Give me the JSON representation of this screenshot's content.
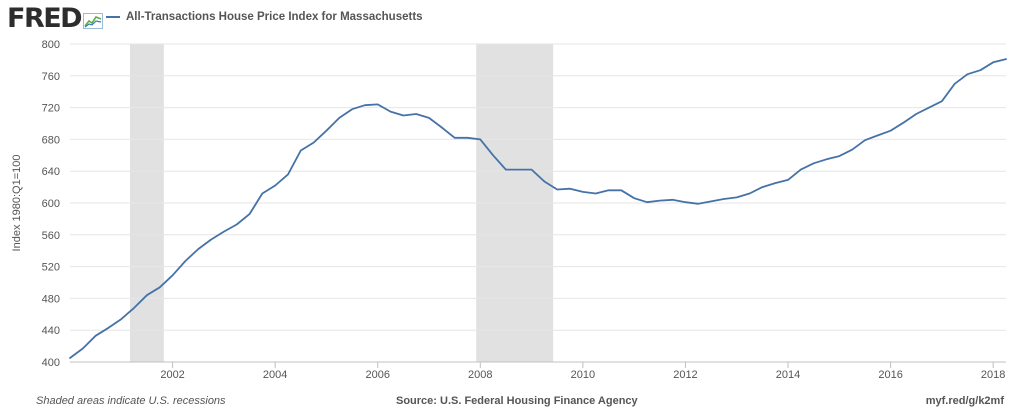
{
  "header": {
    "logo_text": "FRED",
    "logo_icon": "line-chart-icon",
    "series_title": "All-Transactions House Price Index for Massachusetts"
  },
  "footer": {
    "recession_note": "Shaded areas indicate U.S. recessions",
    "source": "Source: U.S. Federal Housing Finance Agency",
    "short_url": "myf.red/g/k2mf"
  },
  "colors": {
    "series": "#4572a7",
    "recession": "#e1e1e1",
    "grid": "#e6e6e6",
    "text": "#555555"
  },
  "chart_data": {
    "type": "line",
    "ylabel": "Index 1980:Q1=100",
    "xlabel": "",
    "ylim": [
      400,
      800
    ],
    "y_ticks": [
      400,
      440,
      480,
      520,
      560,
      600,
      640,
      680,
      720,
      760,
      800
    ],
    "xlim": [
      2000.0,
      2018.25
    ],
    "x_ticks": [
      2002,
      2004,
      2006,
      2008,
      2010,
      2012,
      2014,
      2016,
      2018
    ],
    "grid": "horizontal",
    "recessions": [
      [
        2001.17,
        2001.83
      ],
      [
        2007.92,
        2009.42
      ]
    ],
    "series": [
      {
        "name": "All-Transactions House Price Index for Massachusetts",
        "x": [
          2000.0,
          2000.25,
          2000.5,
          2000.75,
          2001.0,
          2001.25,
          2001.5,
          2001.75,
          2002.0,
          2002.25,
          2002.5,
          2002.75,
          2003.0,
          2003.25,
          2003.5,
          2003.75,
          2004.0,
          2004.25,
          2004.5,
          2004.75,
          2005.0,
          2005.25,
          2005.5,
          2005.75,
          2006.0,
          2006.25,
          2006.5,
          2006.75,
          2007.0,
          2007.25,
          2007.5,
          2007.75,
          2008.0,
          2008.25,
          2008.5,
          2008.75,
          2009.0,
          2009.25,
          2009.5,
          2009.75,
          2010.0,
          2010.25,
          2010.5,
          2010.75,
          2011.0,
          2011.25,
          2011.5,
          2011.75,
          2012.0,
          2012.25,
          2012.5,
          2012.75,
          2013.0,
          2013.25,
          2013.5,
          2013.75,
          2014.0,
          2014.25,
          2014.5,
          2014.75,
          2015.0,
          2015.25,
          2015.5,
          2015.75,
          2016.0,
          2016.25,
          2016.5,
          2016.75,
          2017.0,
          2017.25,
          2017.5,
          2017.75,
          2018.0,
          2018.25
        ],
        "values": [
          405,
          417,
          433,
          443,
          454,
          468,
          484,
          494,
          509,
          527,
          542,
          554,
          564,
          573,
          586,
          612,
          622,
          636,
          666,
          676,
          691,
          707,
          718,
          723,
          724,
          715,
          710,
          712,
          707,
          695,
          682,
          682,
          680,
          660,
          642,
          642,
          642,
          627,
          617,
          618,
          614,
          612,
          616,
          616,
          606,
          601,
          603,
          604,
          601,
          599,
          602,
          605,
          607,
          612,
          620,
          625,
          629,
          642,
          650,
          655,
          659,
          667,
          679,
          685,
          691,
          701,
          712,
          720,
          728,
          750,
          762,
          767,
          777,
          781
        ]
      }
    ]
  }
}
